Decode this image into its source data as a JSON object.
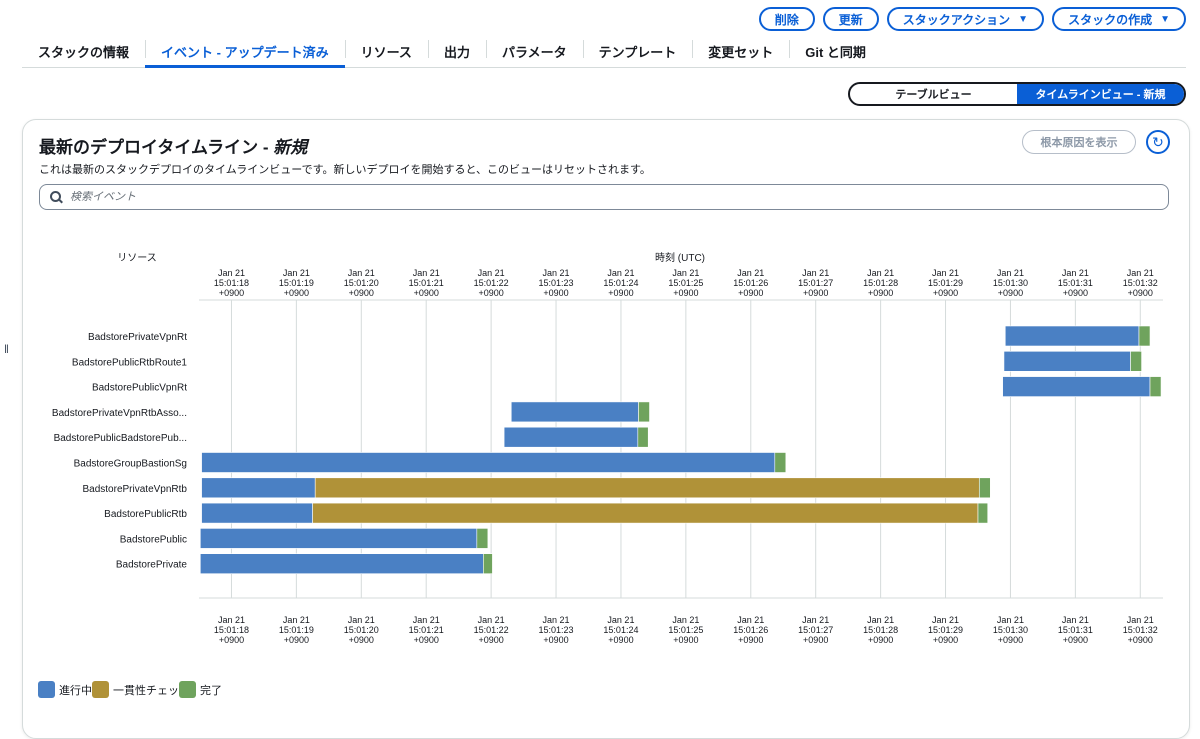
{
  "header": {
    "buttons": [
      {
        "label": "削除",
        "caret": false
      },
      {
        "label": "更新",
        "caret": false
      },
      {
        "label": "スタックアクション",
        "caret": true
      },
      {
        "label": "スタックの作成",
        "caret": true
      }
    ],
    "tabs": [
      "スタックの情報",
      "イベント - アップデート済み",
      "リソース",
      "出力",
      "パラメータ",
      "テンプレート",
      "変更セット",
      "Git と同期"
    ],
    "active_tab": 1
  },
  "view_toggle": {
    "table": "テーブルビュー",
    "timeline": "タイムラインビュー - 新規"
  },
  "panel": {
    "title": "最新のデプロイタイムライン - ",
    "title_em": "新規",
    "description": "これは最新のスタックデプロイのタイムラインビューです。新しいデプロイを開始すると、このビューはリセットされます。",
    "root_cause_button": "根本原因を表示",
    "search_placeholder": "検索イベント"
  },
  "chart_data": {
    "type": "bar",
    "resource_header": "リソース",
    "time_header": "時刻 (UTC)",
    "ticks": [
      {
        "date": "Jan 21",
        "time": "15:01:18",
        "tz": "+0900"
      },
      {
        "date": "Jan 21",
        "time": "15:01:19",
        "tz": "+0900"
      },
      {
        "date": "Jan 21",
        "time": "15:01:20",
        "tz": "+0900"
      },
      {
        "date": "Jan 21",
        "time": "15:01:21",
        "tz": "+0900"
      },
      {
        "date": "Jan 21",
        "time": "15:01:22",
        "tz": "+0900"
      },
      {
        "date": "Jan 21",
        "time": "15:01:23",
        "tz": "+0900"
      },
      {
        "date": "Jan 21",
        "time": "15:01:24",
        "tz": "+0900"
      },
      {
        "date": "Jan 21",
        "time": "15:01:25",
        "tz": "+0900"
      },
      {
        "date": "Jan 21",
        "time": "15:01:26",
        "tz": "+0900"
      },
      {
        "date": "Jan 21",
        "time": "15:01:27",
        "tz": "+0900"
      },
      {
        "date": "Jan 21",
        "time": "15:01:28",
        "tz": "+0900"
      },
      {
        "date": "Jan 21",
        "time": "15:01:29",
        "tz": "+0900"
      },
      {
        "date": "Jan 21",
        "time": "15:01:30",
        "tz": "+0900"
      },
      {
        "date": "Jan 21",
        "time": "15:01:31",
        "tz": "+0900"
      },
      {
        "date": "Jan 21",
        "time": "15:01:32",
        "tz": "+0900"
      }
    ],
    "xlim": [
      "15:01:17.50",
      "15:01:32.35"
    ],
    "resources": [
      {
        "name": "BadstorePrivateVpnRt",
        "segments": [
          {
            "status": "in_progress",
            "start": "15:01:29.92",
            "end": "15:01:31.98"
          },
          {
            "status": "complete",
            "start": "15:01:31.98",
            "end": "15:01:32.15"
          }
        ]
      },
      {
        "name": "BadstorePublicRtbRoute1",
        "segments": [
          {
            "status": "in_progress",
            "start": "15:01:29.90",
            "end": "15:01:31.85"
          },
          {
            "status": "complete",
            "start": "15:01:31.85",
            "end": "15:01:32.02"
          }
        ]
      },
      {
        "name": "BadstorePublicVpnRt",
        "segments": [
          {
            "status": "in_progress",
            "start": "15:01:29.88",
            "end": "15:01:32.15"
          },
          {
            "status": "complete",
            "start": "15:01:32.15",
            "end": "15:01:32.32"
          }
        ]
      },
      {
        "name": "BadstorePrivateVpnRtbAsso...",
        "segments": [
          {
            "status": "in_progress",
            "start": "15:01:22.31",
            "end": "15:01:24.27"
          },
          {
            "status": "complete",
            "start": "15:01:24.27",
            "end": "15:01:24.44"
          }
        ]
      },
      {
        "name": "BadstorePublicBadstorePub...",
        "segments": [
          {
            "status": "in_progress",
            "start": "15:01:22.20",
            "end": "15:01:24.26"
          },
          {
            "status": "complete",
            "start": "15:01:24.26",
            "end": "15:01:24.42"
          }
        ]
      },
      {
        "name": "BadstoreGroupBastionSg",
        "segments": [
          {
            "status": "in_progress",
            "start": "15:01:17.54",
            "end": "15:01:26.37"
          },
          {
            "status": "complete",
            "start": "15:01:26.37",
            "end": "15:01:26.54"
          }
        ]
      },
      {
        "name": "BadstorePrivateVpnRtb",
        "segments": [
          {
            "status": "in_progress",
            "start": "15:01:17.54",
            "end": "15:01:19.29"
          },
          {
            "status": "consistency_check",
            "start": "15:01:19.29",
            "end": "15:01:29.52"
          },
          {
            "status": "complete",
            "start": "15:01:29.52",
            "end": "15:01:29.69"
          }
        ]
      },
      {
        "name": "BadstorePublicRtb",
        "segments": [
          {
            "status": "in_progress",
            "start": "15:01:17.54",
            "end": "15:01:19.25"
          },
          {
            "status": "consistency_check",
            "start": "15:01:19.25",
            "end": "15:01:29.50"
          },
          {
            "status": "complete",
            "start": "15:01:29.50",
            "end": "15:01:29.65"
          }
        ]
      },
      {
        "name": "BadstorePublic",
        "segments": [
          {
            "status": "in_progress",
            "start": "15:01:17.52",
            "end": "15:01:21.78"
          },
          {
            "status": "complete",
            "start": "15:01:21.78",
            "end": "15:01:21.95"
          }
        ]
      },
      {
        "name": "BadstorePrivate",
        "segments": [
          {
            "status": "in_progress",
            "start": "15:01:17.52",
            "end": "15:01:21.88"
          },
          {
            "status": "complete",
            "start": "15:01:21.88",
            "end": "15:01:22.02"
          }
        ]
      }
    ],
    "legend": [
      {
        "key": "in_progress",
        "label": "進行中",
        "color": "#4a80c4"
      },
      {
        "key": "consistency_check",
        "label": "一貫性チェッ",
        "color": "#b09238"
      },
      {
        "key": "complete",
        "label": "完了",
        "color": "#6fa35d"
      }
    ],
    "grid": true,
    "legend_position": "bottom-left"
  }
}
